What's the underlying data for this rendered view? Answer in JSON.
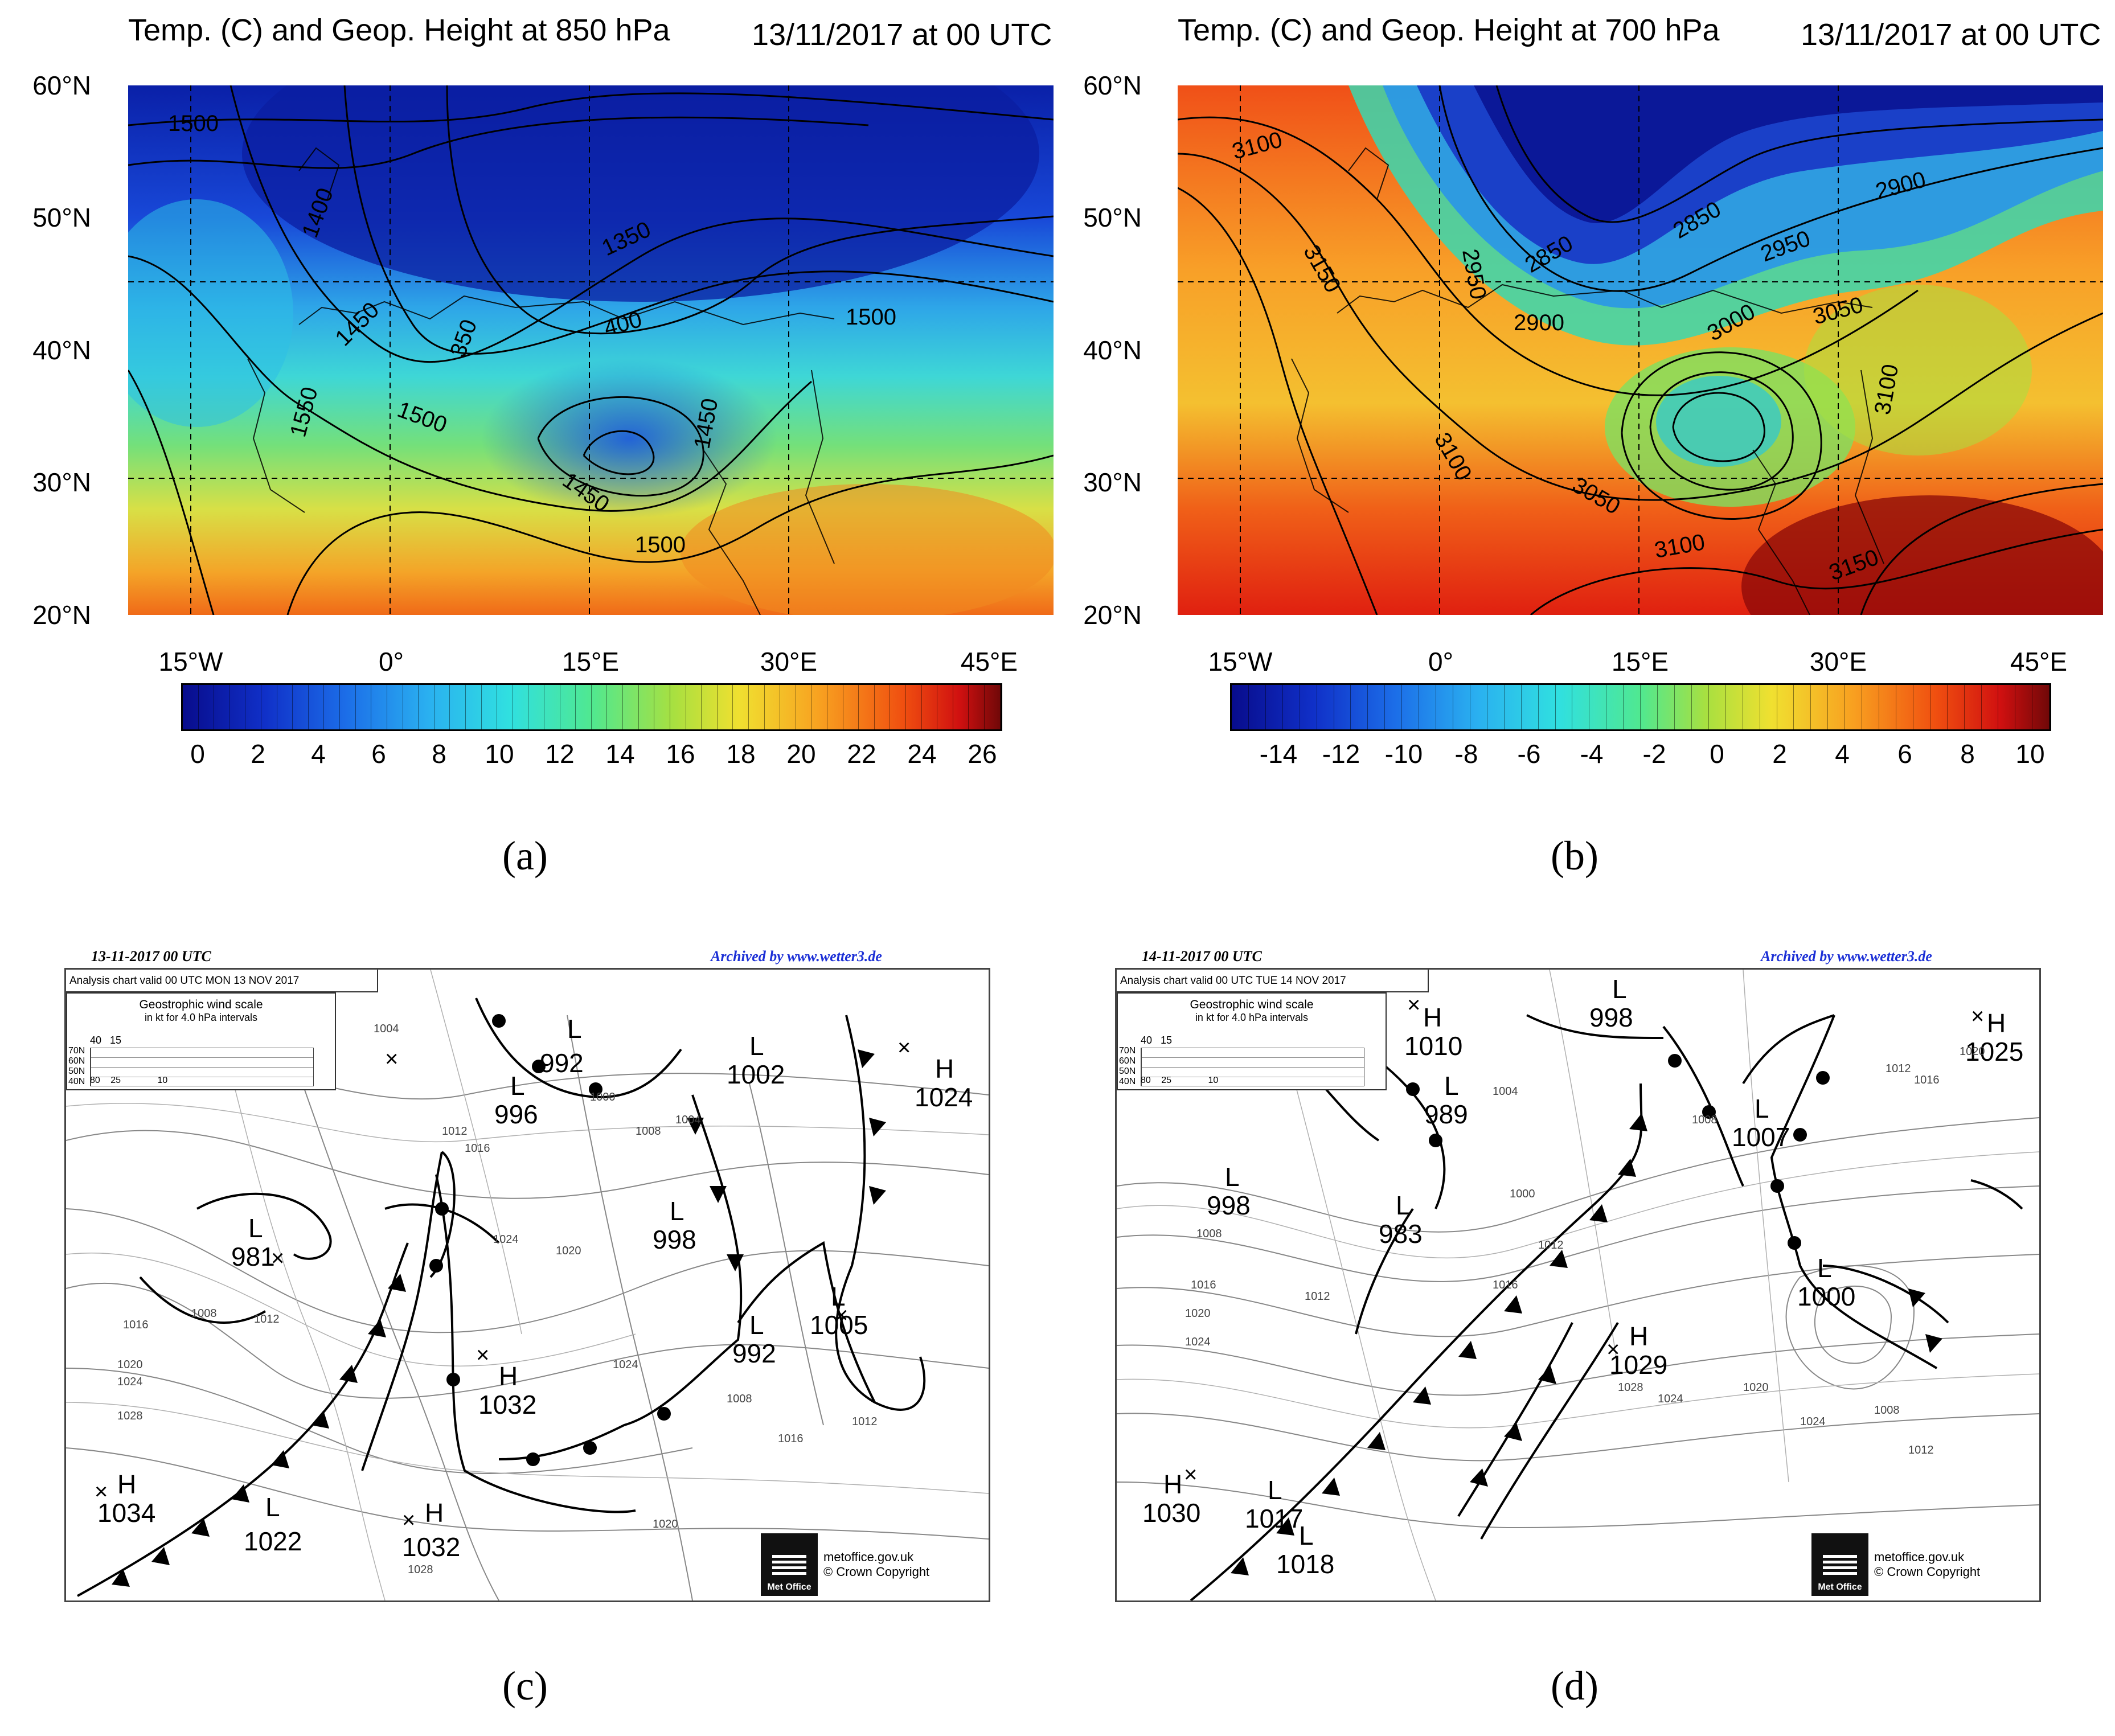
{
  "panel_a": {
    "title": "Temp. (C) and Geop. Height at 850 hPa",
    "datetime": "13/11/2017 at 00 UTC",
    "letter": "(a)",
    "lat_labels": [
      "60°N",
      "50°N",
      "40°N",
      "30°N",
      "20°N"
    ],
    "lon_labels": [
      "15°W",
      "0°",
      "15°E",
      "30°E",
      "45°E"
    ],
    "colorbar_labels": [
      "0",
      "2",
      "4",
      "6",
      "8",
      "10",
      "12",
      "14",
      "16",
      "18",
      "20",
      "22",
      "24",
      "26"
    ],
    "contour_labels": [
      "1500",
      "1400",
      "1350",
      "1450",
      "350",
      "400",
      "1500",
      "1550",
      "1500",
      "1450",
      "1450",
      "1500"
    ]
  },
  "panel_b": {
    "title": "Temp. (C) and Geop. Height at 700 hPa",
    "datetime": "13/11/2017 at 00 UTC",
    "letter": "(b)",
    "lat_labels": [
      "60°N",
      "50°N",
      "40°N",
      "30°N",
      "20°N"
    ],
    "lon_labels": [
      "15°W",
      "0°",
      "15°E",
      "30°E",
      "45°E"
    ],
    "colorbar_labels": [
      "-14",
      "-12",
      "-10",
      "-8",
      "-6",
      "-4",
      "-2",
      "0",
      "2",
      "4",
      "6",
      "8",
      "10"
    ],
    "contour_labels": [
      "3100",
      "3150",
      "2950",
      "2850",
      "2850",
      "2900",
      "2950",
      "2900",
      "3000",
      "3050",
      "3100",
      "3100",
      "3050",
      "3100",
      "3150"
    ]
  },
  "panel_c": {
    "date_header": "13-11-2017  00 UTC",
    "archive": "Archived by www.wetter3.de",
    "subheader": "Analysis chart  valid 00 UTC MON 13  NOV 2017",
    "scale_title": "Geostrophic wind scale",
    "scale_sub": "in kt for 4.0 hPa intervals",
    "scale_top": [
      "40",
      "15"
    ],
    "scale_lat": [
      "70N",
      "60N",
      "50N",
      "40N"
    ],
    "scale_bottom": [
      "80",
      "25",
      "10"
    ],
    "letter": "(c)",
    "logo_name": "Met Office",
    "logo_site": "metoffice.gov.uk",
    "logo_copy": "© Crown Copyright",
    "pressure_centers": [
      {
        "type": "L",
        "value": "992"
      },
      {
        "type": "L",
        "value": "996"
      },
      {
        "type": "L",
        "value": "1002"
      },
      {
        "type": "H",
        "value": "1024"
      },
      {
        "type": "L",
        "value": "981"
      },
      {
        "type": "L",
        "value": "998"
      },
      {
        "type": "L",
        "value": "992"
      },
      {
        "type": "L",
        "value": "1005"
      },
      {
        "type": "H",
        "value": "1032"
      },
      {
        "type": "H",
        "value": "1034"
      },
      {
        "type": "L",
        "value": "1022"
      },
      {
        "type": "H",
        "value": "1032"
      }
    ],
    "isobar_labels": [
      "1004",
      "1012",
      "1016",
      "1008",
      "1000",
      "1004",
      "1020",
      "1024",
      "1028",
      "1016",
      "1012",
      "1008",
      "1020",
      "1024",
      "1028",
      "1024",
      "1016",
      "1020",
      "1012",
      "1008"
    ]
  },
  "panel_d": {
    "date_header": "14-11-2017  00 UTC",
    "archive": "Archived by www.wetter3.de",
    "subheader": "Analysis chart  valid 00 UTC TUE 14  NOV 2017",
    "scale_title": "Geostrophic wind scale",
    "scale_sub": "in kt for 4.0 hPa intervals",
    "scale_top": [
      "40",
      "15"
    ],
    "scale_lat": [
      "70N",
      "60N",
      "50N",
      "40N"
    ],
    "scale_bottom": [
      "80",
      "25",
      "10"
    ],
    "letter": "(d)",
    "logo_name": "Met Office",
    "logo_site": "metoffice.gov.uk",
    "logo_copy": "© Crown Copyright",
    "pressure_centers": [
      {
        "type": "H",
        "value": "1010"
      },
      {
        "type": "L",
        "value": "998"
      },
      {
        "type": "L",
        "value": "989"
      },
      {
        "type": "H",
        "value": "1025"
      },
      {
        "type": "L",
        "value": "1007"
      },
      {
        "type": "L",
        "value": "998"
      },
      {
        "type": "L",
        "value": "983"
      },
      {
        "type": "L",
        "value": "1000"
      },
      {
        "type": "H",
        "value": "1029"
      },
      {
        "type": "H",
        "value": "1030"
      },
      {
        "type": "L",
        "value": "1017"
      },
      {
        "type": "L",
        "value": "1018"
      }
    ],
    "isobar_labels": [
      "1004",
      "1008",
      "1012",
      "1016",
      "1020",
      "1024",
      "1000",
      "1012",
      "1016",
      "1020",
      "1024",
      "1028",
      "1008",
      "1012",
      "1016",
      "1020",
      "1024",
      "1012",
      "1008"
    ]
  },
  "colors": {
    "cold": "#0a1fa8",
    "warm": "#d81e1e",
    "frontline": "#000000"
  }
}
